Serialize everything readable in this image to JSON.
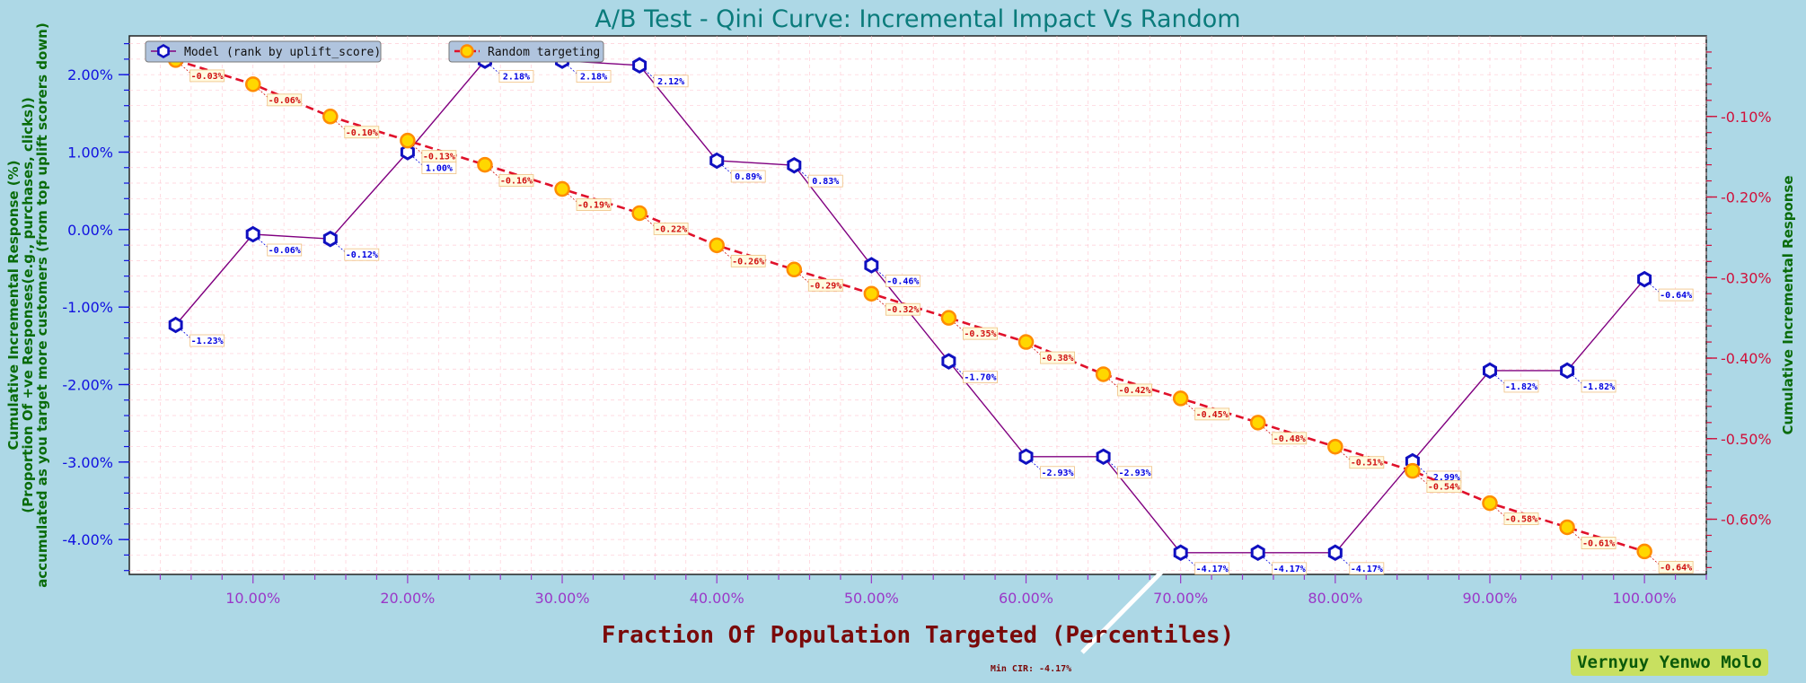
{
  "chart_data": {
    "type": "line",
    "title": "A/B Test - Qini Curve: Incremental Impact Vs Random",
    "xlabel": "Fraction Of Population Targeted (Percentiles)",
    "ylabel_left": [
      "Cumulative Incremental Response (%)",
      "(Proportion Of +ve Responses(e.g., purchases, clicks))",
      "accumulated as you target more customers (from top uplift scorers down)"
    ],
    "ylabel_right": "Cumulative Incremental Response",
    "x": [
      5,
      10,
      15,
      20,
      25,
      30,
      35,
      40,
      45,
      50,
      55,
      60,
      65,
      70,
      75,
      80,
      85,
      90,
      95,
      100
    ],
    "xlim": [
      2,
      104
    ],
    "ylim_left": [
      -4.45,
      2.5
    ],
    "ylim_right": [
      -0.6685,
      0.0
    ],
    "x_ticks": [
      "10.00%",
      "20.00%",
      "30.00%",
      "40.00%",
      "50.00%",
      "60.00%",
      "70.00%",
      "80.00%",
      "90.00%",
      "100.00%"
    ],
    "y_ticks_left": [
      "2.00%",
      "1.00%",
      "0.00%",
      "-1.00%",
      "-2.00%",
      "-3.00%",
      "-4.00%"
    ],
    "y_ticks_right": [
      "-0.10%",
      "-0.20%",
      "-0.30%",
      "-0.40%",
      "-0.50%",
      "-0.60%"
    ],
    "grid": true,
    "legend_placement": "top-left",
    "series": [
      {
        "name": "Model (rank by uplift_score)",
        "axis": "left",
        "color": "#800080",
        "values": [
          -1.23,
          -0.06,
          -0.12,
          1.0,
          2.18,
          2.18,
          2.12,
          0.89,
          0.83,
          -0.46,
          -1.7,
          -2.93,
          -2.93,
          -4.17,
          -4.17,
          -4.17,
          -2.99,
          -1.82,
          -1.82,
          -0.64
        ],
        "labels": [
          "-1.23%",
          "-0.06%",
          "-0.12%",
          "1.00%",
          "2.18%",
          "2.18%",
          "2.12%",
          "0.89%",
          "0.83%",
          "-0.46%",
          "-1.70%",
          "-2.93%",
          "-2.93%",
          "-4.17%",
          "-4.17%",
          "-4.17%",
          "-2.99%",
          "-1.82%",
          "-1.82%",
          "-0.64%"
        ]
      },
      {
        "name": "Random targeting",
        "axis": "right",
        "color": "#e0102a",
        "values": [
          -0.03,
          -0.06,
          -0.1,
          -0.13,
          -0.16,
          -0.19,
          -0.22,
          -0.26,
          -0.29,
          -0.32,
          -0.35,
          -0.38,
          -0.42,
          -0.45,
          -0.48,
          -0.51,
          -0.54,
          -0.58,
          -0.61,
          -0.64
        ],
        "labels": [
          "-0.03%",
          "-0.06%",
          "-0.10%",
          "-0.13%",
          "-0.16%",
          "-0.19%",
          "-0.22%",
          "-0.26%",
          "-0.29%",
          "-0.32%",
          "-0.35%",
          "-0.38%",
          "-0.42%",
          "-0.45%",
          "-0.48%",
          "-0.51%",
          "-0.54%",
          "-0.58%",
          "-0.61%",
          "-0.64%"
        ]
      }
    ],
    "annotations": [
      {
        "text": "Min CIR: -4.17%",
        "x": 70,
        "y": -4.17
      }
    ]
  },
  "watermark": "Vernyuy Yenwo Molo",
  "colors": {
    "background": "#add8e6",
    "plot_background": "#ffffff",
    "grid": "#ffc0cb"
  }
}
